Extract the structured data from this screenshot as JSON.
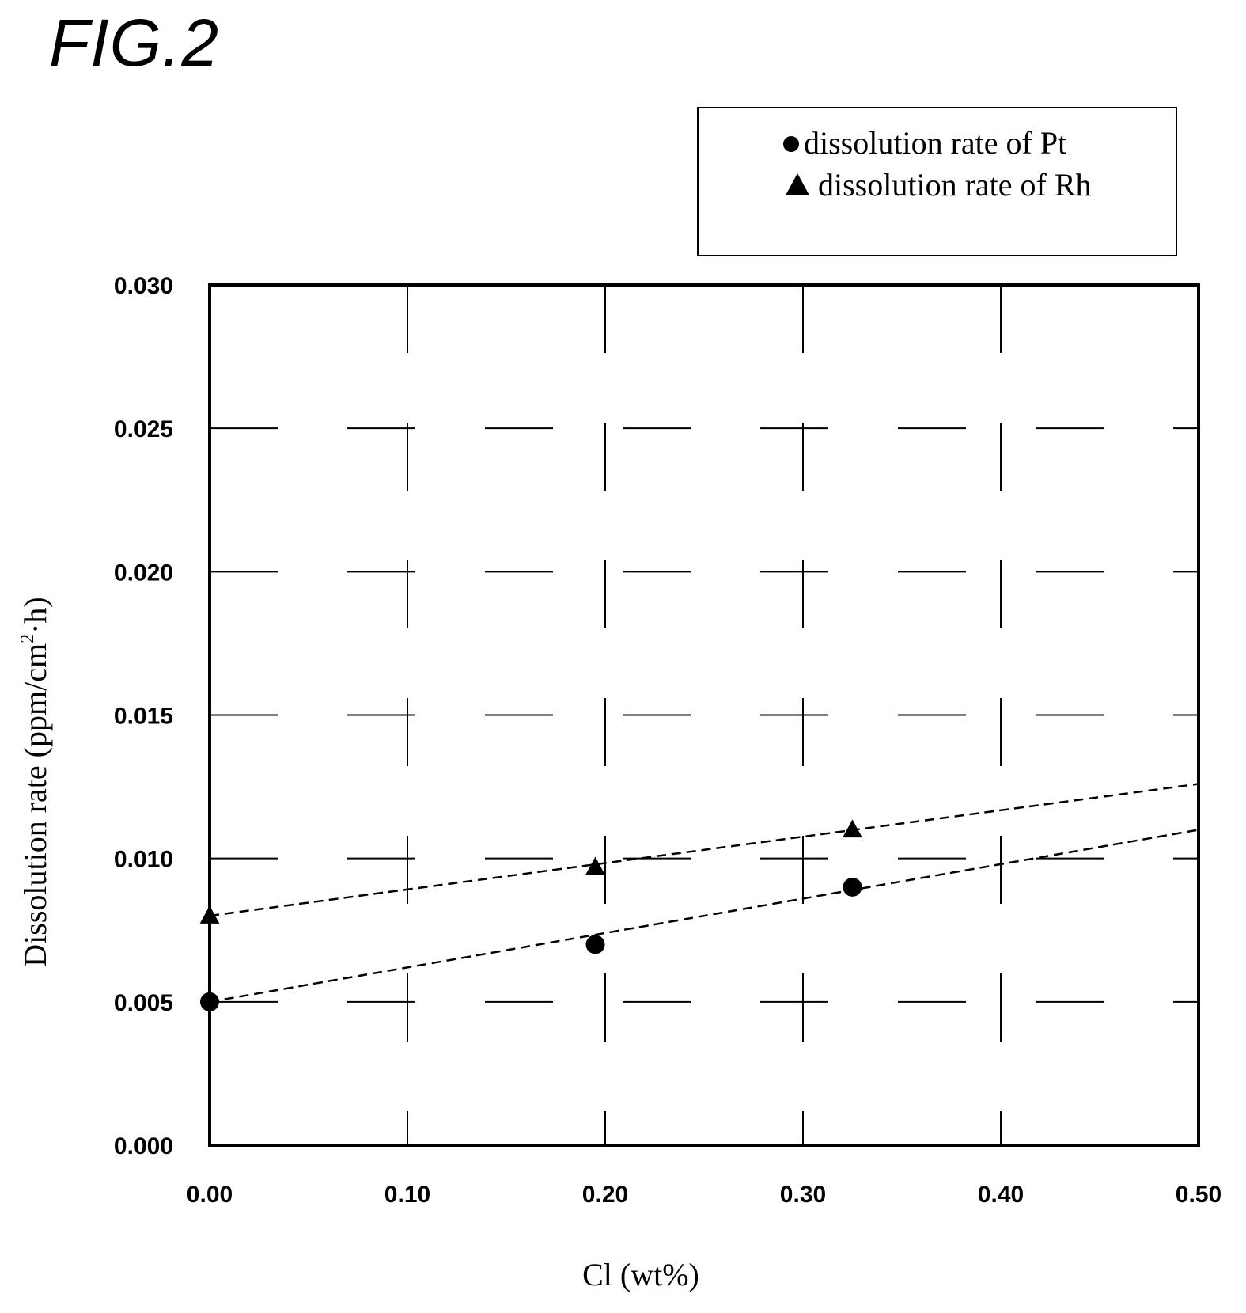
{
  "figure": {
    "title": "FIG.2"
  },
  "chart_data": {
    "type": "scatter",
    "xlabel": "Cl (wt%)",
    "ylabel_main": "Dissolution rate (ppm/cm",
    "ylabel_sup": "2",
    "ylabel_tail": "·h)",
    "xlim": [
      0,
      0.5
    ],
    "ylim": [
      0,
      0.03
    ],
    "x_ticks": [
      "0.00",
      "0.10",
      "0.20",
      "0.30",
      "0.40",
      "0.50"
    ],
    "x_tick_values": [
      0,
      0.1,
      0.2,
      0.3,
      0.4,
      0.5
    ],
    "y_ticks": [
      "0.000",
      "0.005",
      "0.010",
      "0.015",
      "0.020",
      "0.025",
      "0.030"
    ],
    "y_tick_values": [
      0,
      0.005,
      0.01,
      0.015,
      0.02,
      0.025,
      0.03
    ],
    "grid": true,
    "legend_placement": "top-right",
    "series": [
      {
        "name": "dissolution rate of Pt",
        "marker": "circle",
        "color": "#000000",
        "x": [
          0.0,
          0.195,
          0.325
        ],
        "y": [
          0.005,
          0.007,
          0.009
        ],
        "trendline": {
          "x": [
            0.0,
            0.5
          ],
          "y": [
            0.005,
            0.011
          ]
        }
      },
      {
        "name": "dissolution rate of Rh",
        "marker": "triangle",
        "color": "#000000",
        "x": [
          0.0,
          0.195,
          0.325
        ],
        "y": [
          0.008,
          0.0097,
          0.011
        ],
        "trendline": {
          "x": [
            0.0,
            0.5
          ],
          "y": [
            0.008,
            0.0126
          ]
        }
      }
    ]
  }
}
